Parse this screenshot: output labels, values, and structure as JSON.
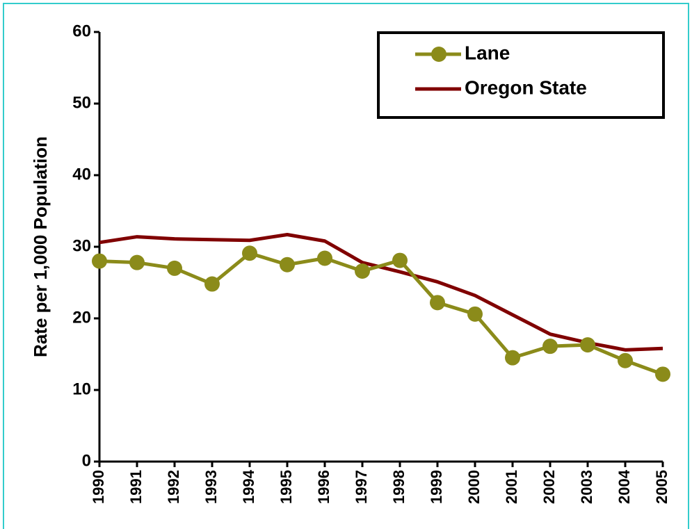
{
  "chart_data": {
    "type": "line",
    "y_label": "Rate per 1,000 Population",
    "categories": [
      "1990",
      "1991",
      "1992",
      "1993",
      "1994",
      "1995",
      "1996",
      "1997",
      "1998",
      "1999",
      "2000",
      "2001",
      "2002",
      "2003",
      "2004",
      "2005"
    ],
    "series": [
      {
        "name": "Lane",
        "color": "#8b8b1a",
        "marker": true,
        "values": [
          28.0,
          27.8,
          27.0,
          24.8,
          29.1,
          27.5,
          28.4,
          26.6,
          28.1,
          22.2,
          20.6,
          14.5,
          16.1,
          16.3,
          14.1,
          12.2
        ]
      },
      {
        "name": "Oregon State",
        "color": "#800000",
        "marker": false,
        "values": [
          30.6,
          31.4,
          31.1,
          31.0,
          30.9,
          31.7,
          30.8,
          27.8,
          26.5,
          25.1,
          23.2,
          20.5,
          17.8,
          16.6,
          15.6,
          15.8
        ]
      }
    ],
    "ylim": [
      0,
      60
    ],
    "yticks": [
      0,
      10,
      20,
      30,
      40,
      50,
      60
    ],
    "legend": "upper right"
  }
}
